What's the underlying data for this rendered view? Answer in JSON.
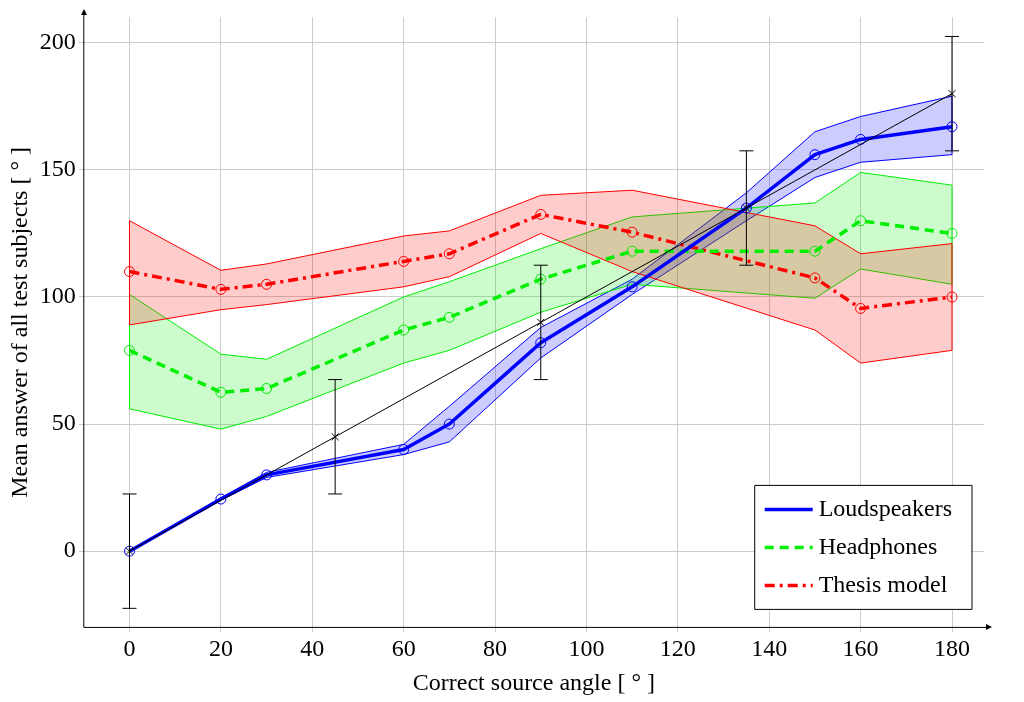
{
  "chart_data": {
    "type": "line",
    "xlabel": "Correct source angle [ ° ]",
    "ylabel": "Mean answer of all test subjects [ ° ]",
    "xlim": [
      -10,
      187
    ],
    "xticks": [
      0,
      20,
      40,
      60,
      80,
      100,
      120,
      140,
      160,
      180
    ],
    "ylim": [
      -30,
      210
    ],
    "yticks": [
      0,
      50,
      100,
      150,
      200
    ],
    "grid": true,
    "legend": "bottom right",
    "series": [
      {
        "name": "Loudspeakers",
        "color": "#0000ff",
        "marker": "circle",
        "line_style": "solid",
        "x": [
          0,
          20,
          30,
          60,
          70,
          90,
          110,
          135,
          150,
          160,
          180
        ],
        "values": [
          0,
          20.5,
          30,
          40,
          50,
          82,
          104,
          135,
          156,
          162,
          167
        ],
        "lower": [
          0,
          20,
          29,
          38,
          43,
          76,
          101,
          130,
          147,
          153,
          156
        ],
        "upper": [
          0,
          21,
          31,
          42,
          57,
          88,
          107,
          141,
          165,
          171,
          179
        ]
      },
      {
        "name": "Headphones",
        "color": "#00ee00",
        "marker": "circle",
        "line_style": "dashed",
        "x": [
          0,
          20,
          30,
          60,
          70,
          90,
          110,
          150,
          160,
          180
        ],
        "values": [
          79,
          62.5,
          64,
          87,
          92,
          107,
          118,
          118,
          130,
          125
        ],
        "lower": [
          56,
          48,
          53,
          74,
          79,
          94,
          105,
          99.5,
          111,
          105
        ],
        "upper": [
          101,
          77.5,
          75.5,
          100,
          106,
          119,
          131.5,
          137,
          149,
          144
        ]
      },
      {
        "name": "Thesis model",
        "color": "#ff0000",
        "marker": "circle",
        "line_style": "dashdot",
        "x": [
          0,
          20,
          30,
          60,
          70,
          90,
          110,
          150,
          160,
          180
        ],
        "values": [
          110,
          103,
          105,
          114,
          117,
          132.5,
          125.5,
          107.5,
          95.5,
          100
        ],
        "lower": [
          89,
          95,
          97,
          104,
          108,
          125,
          110,
          87,
          74,
          79
        ],
        "upper": [
          130,
          110.5,
          113,
          124,
          126,
          140,
          142,
          128,
          117,
          121
        ]
      },
      {
        "color": "#000000",
        "marker": "cross",
        "line_style": "solid",
        "x": [
          0,
          45,
          90,
          135,
          180
        ],
        "values": [
          0,
          45,
          90,
          135,
          180
        ],
        "errors": [
          22.5,
          22.5,
          22.5,
          22.5,
          22.5
        ]
      }
    ]
  }
}
